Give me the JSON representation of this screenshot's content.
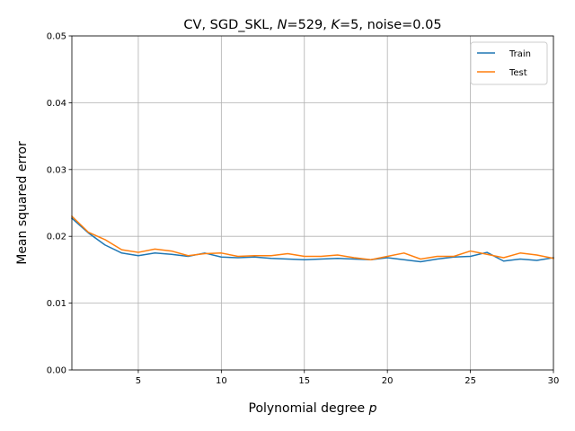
{
  "chart_data": {
    "type": "line",
    "title": {
      "prefix": "CV, SGD_SKL, ",
      "n_symbol": "N",
      "n_value": "=529, ",
      "k_symbol": "K",
      "k_value": "=5, noise=0.05"
    },
    "xlabel": {
      "text": "Polynomial degree ",
      "symbol": "p"
    },
    "ylabel": "Mean squared error",
    "xlim": [
      1,
      30
    ],
    "ylim": [
      0,
      0.05
    ],
    "x_ticks": [
      5,
      10,
      15,
      20,
      25,
      30
    ],
    "y_ticks": [
      "0.00",
      "0.01",
      "0.02",
      "0.03",
      "0.04",
      "0.05"
    ],
    "grid": true,
    "legend_position": "top-right",
    "x": [
      1,
      2,
      3,
      4,
      5,
      6,
      7,
      8,
      9,
      10,
      11,
      12,
      13,
      14,
      15,
      16,
      17,
      18,
      19,
      20,
      21,
      22,
      23,
      24,
      25,
      26,
      27,
      28,
      29,
      30
    ],
    "series": [
      {
        "name": "Train",
        "color": "#1f77b4",
        "values": [
          0.0227,
          0.0205,
          0.0187,
          0.0175,
          0.0171,
          0.0175,
          0.0173,
          0.017,
          0.0175,
          0.0169,
          0.0168,
          0.0169,
          0.0167,
          0.0166,
          0.0165,
          0.0166,
          0.0167,
          0.0166,
          0.0165,
          0.0168,
          0.0165,
          0.0162,
          0.0166,
          0.0169,
          0.017,
          0.0176,
          0.0163,
          0.0166,
          0.0164,
          0.0168
        ]
      },
      {
        "name": "Test",
        "color": "#ff7f0e",
        "values": [
          0.023,
          0.0206,
          0.0195,
          0.018,
          0.0176,
          0.0181,
          0.0178,
          0.0171,
          0.0174,
          0.0175,
          0.017,
          0.0171,
          0.0171,
          0.0174,
          0.017,
          0.017,
          0.0172,
          0.0168,
          0.0165,
          0.017,
          0.0175,
          0.0166,
          0.017,
          0.017,
          0.0178,
          0.0173,
          0.0168,
          0.0175,
          0.0172,
          0.0167
        ]
      }
    ]
  }
}
